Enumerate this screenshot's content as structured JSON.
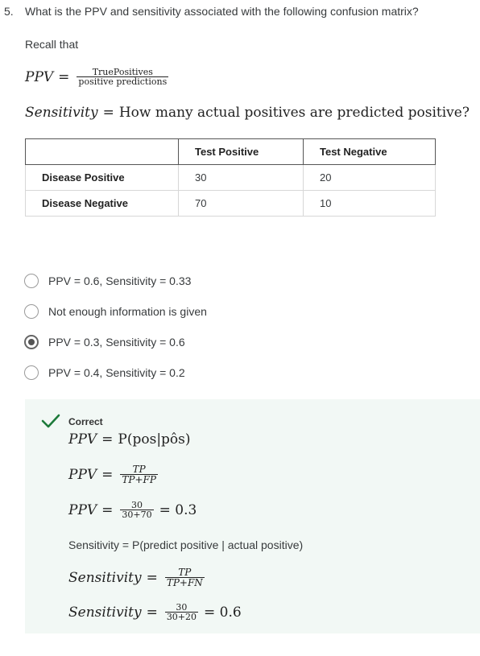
{
  "question": {
    "number": "5.",
    "text": "What is the PPV and sensitivity associated with the following confusion matrix?",
    "recall": "Recall that"
  },
  "formula_ppv": {
    "lhs": "PPV",
    "eq": "=",
    "numerator": "TruePositives",
    "denominator": "positive predictions"
  },
  "formula_sens": {
    "lhs": "Sensitivity",
    "eq": "=",
    "rhs": "How many actual positives are predicted positive?"
  },
  "matrix": {
    "headers": [
      "",
      "Test Positive",
      "Test Negative"
    ],
    "rows": [
      {
        "label": "Disease Positive",
        "values": [
          "30",
          "20"
        ]
      },
      {
        "label": "Disease Negative",
        "values": [
          "70",
          "10"
        ]
      }
    ]
  },
  "options": [
    {
      "label": "PPV = 0.6, Sensitivity = 0.33",
      "selected": false
    },
    {
      "label": "Not enough information is given",
      "selected": false
    },
    {
      "label": "PPV = 0.3, Sensitivity = 0.6",
      "selected": true
    },
    {
      "label": "PPV = 0.4, Sensitivity = 0.2",
      "selected": false
    }
  ],
  "feedback": {
    "status": "Correct",
    "status_color": "#1d7a3a",
    "background": "#f2f8f5",
    "icon": "checkmark-icon",
    "line1": {
      "lhs": "PPV",
      "eq": "=",
      "rhs": "P(pos|pôs)"
    },
    "line2": {
      "lhs": "PPV",
      "eq": "=",
      "num": "TP",
      "den": "TP+FP"
    },
    "line3": {
      "lhs": "PPV",
      "eq": "=",
      "num": "30",
      "den": "30+70",
      "result": "= 0.3"
    },
    "text": "Sensitivity = P(predict positive | actual positive)",
    "line4": {
      "lhs": "Sensitivity",
      "eq": "=",
      "num": "TP",
      "den": "TP+FN"
    },
    "line5": {
      "lhs": "Sensitivity",
      "eq": "=",
      "num": "30",
      "den": "30+20",
      "result": "= 0.6"
    }
  }
}
